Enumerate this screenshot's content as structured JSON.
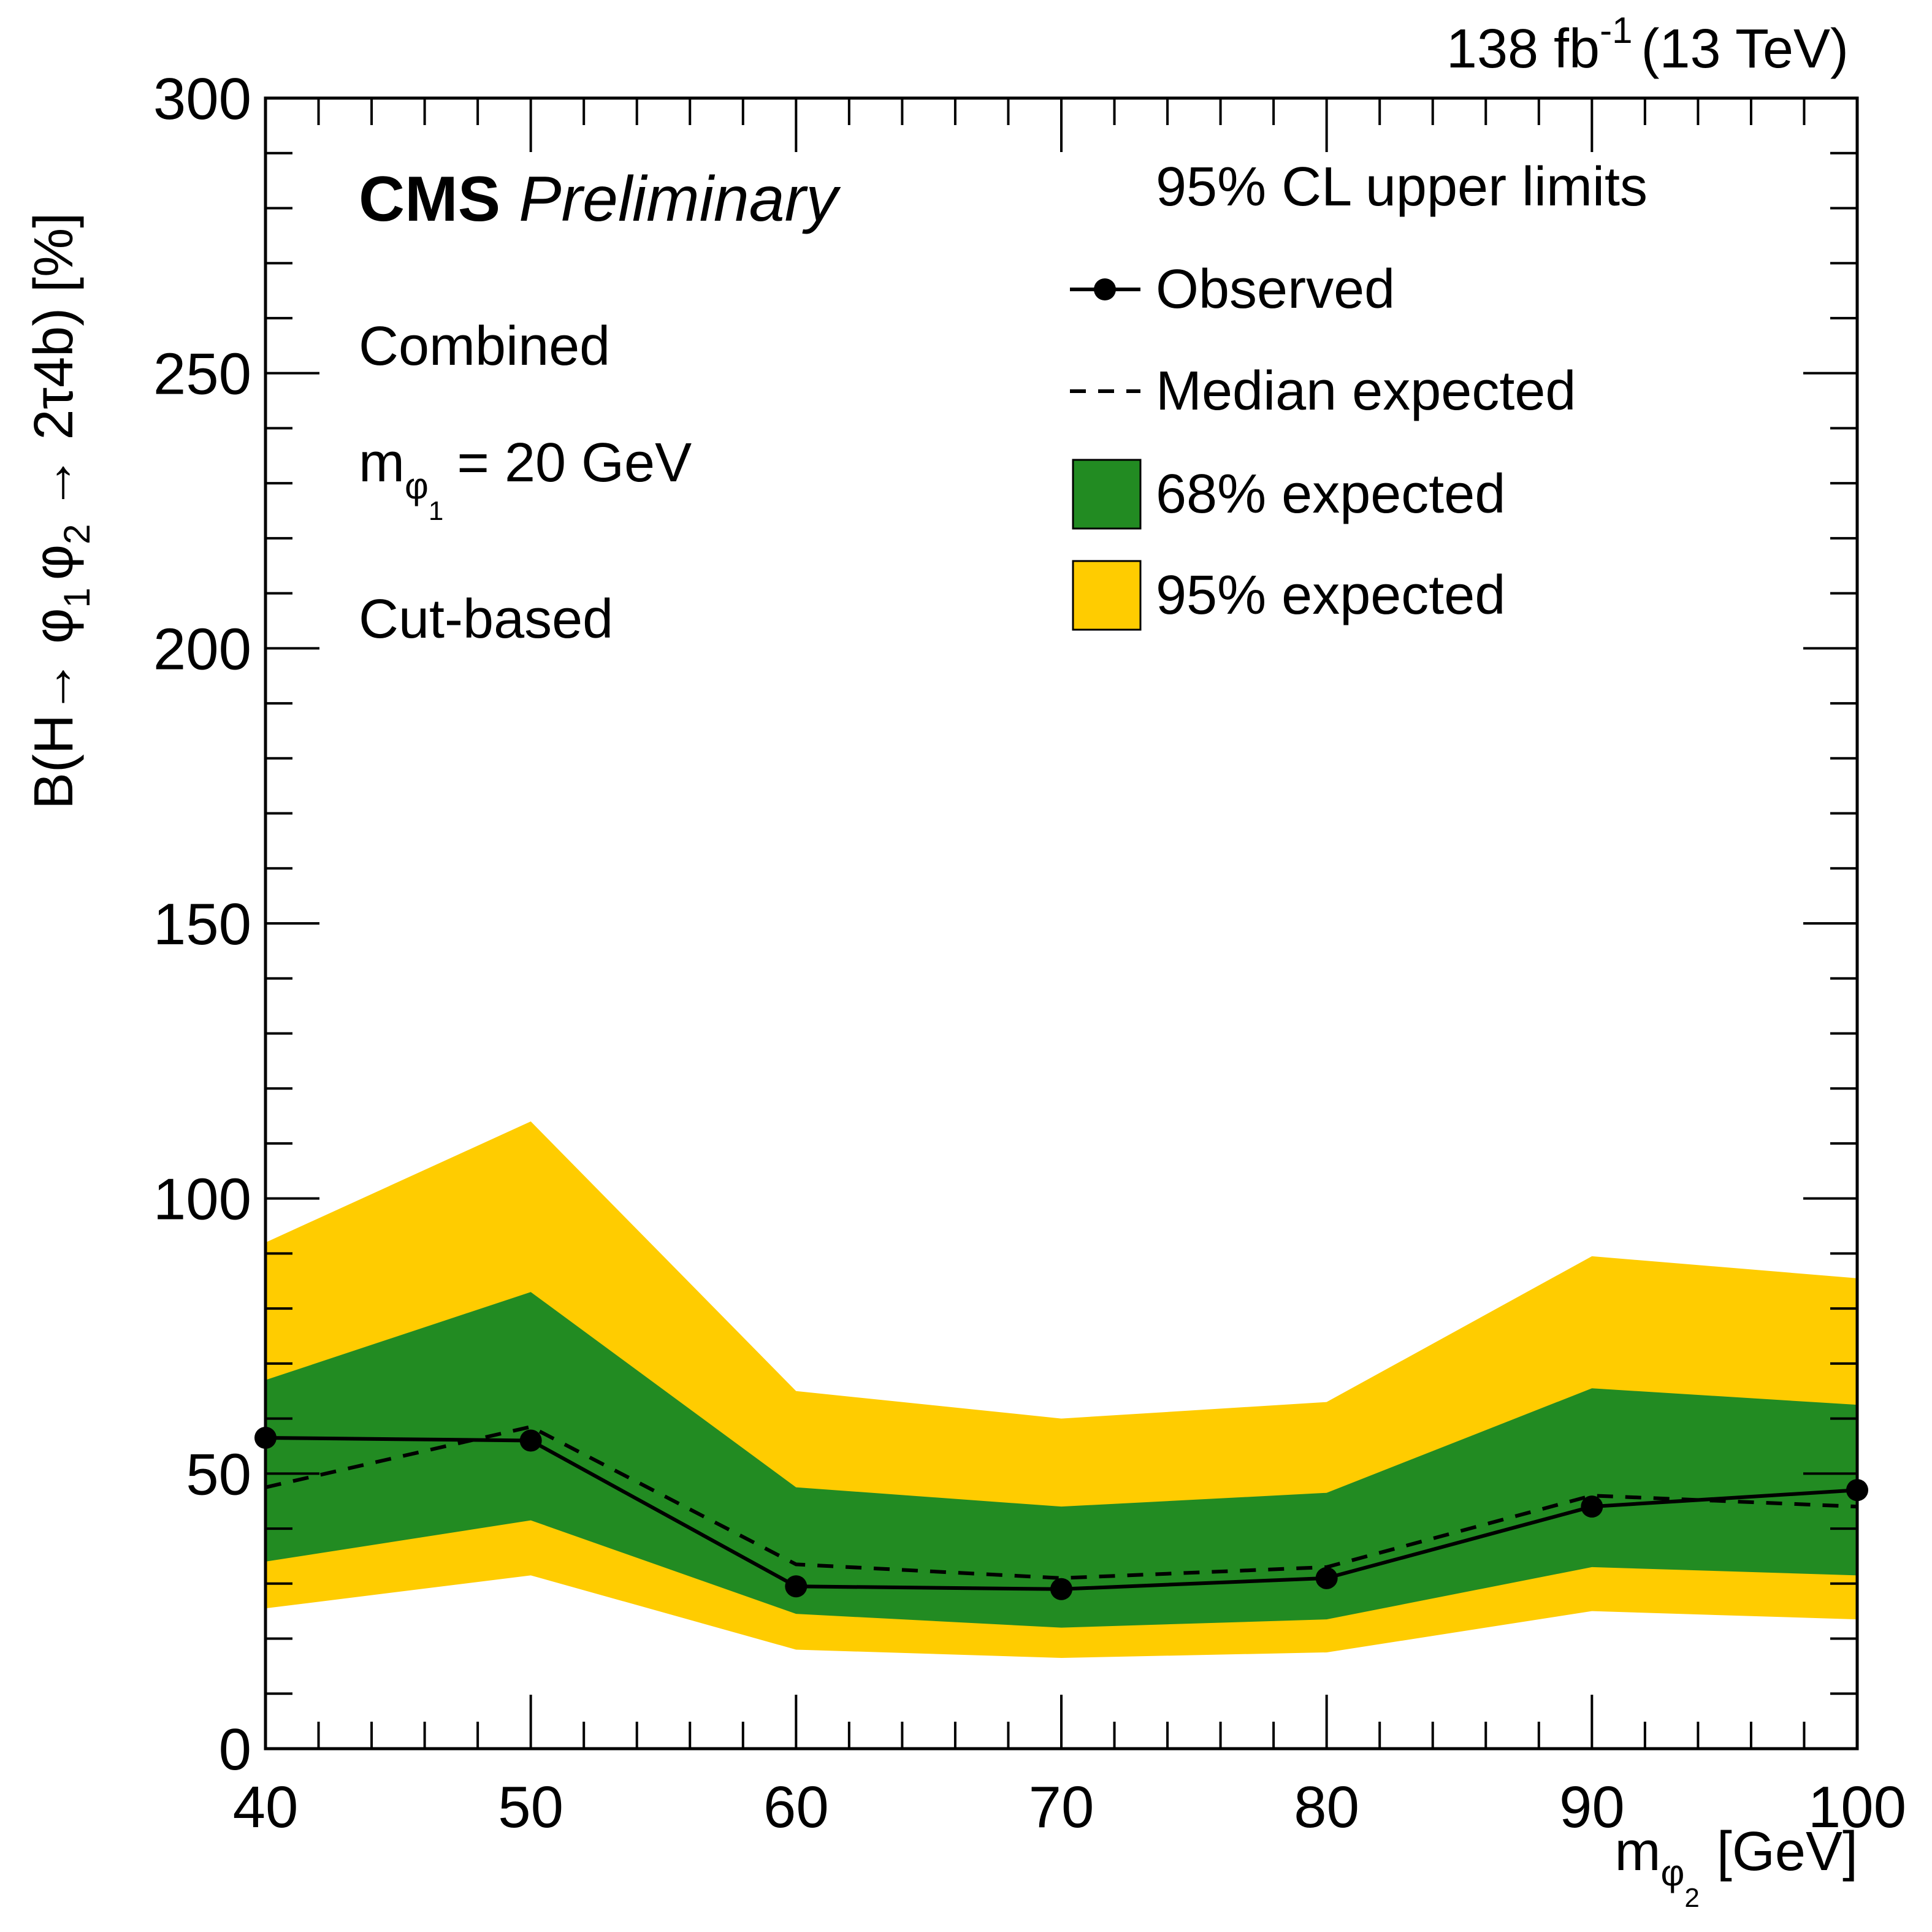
{
  "header": {
    "lumi_value": "138 fb",
    "lumi_exponent": "-1",
    "energy": "(13 TeV)"
  },
  "cms": {
    "brand": "CMS",
    "status": "Preliminary"
  },
  "info": {
    "analysis": "Combined",
    "mass_m": "m",
    "mass_phi": "φ",
    "mass_index": "1",
    "mass_value": "= 20 GeV",
    "method": "Cut-based"
  },
  "legend": {
    "header": "95% CL upper limits",
    "observed": "Observed",
    "median": "Median expected",
    "band68": "68% expected",
    "band95": "95% expected"
  },
  "axes": {
    "x_title_m": "m",
    "x_title_phi": "φ",
    "x_title_index": "2",
    "x_title_unit": "[GeV]",
    "y_title_a": "B(H→ φ",
    "y_sub1": "1",
    "y_title_b": "φ",
    "y_sub2": "2",
    "y_title_c": "→ 2τ4b) [%]"
  },
  "colors": {
    "band68": "#228b22",
    "band95": "#ffcc00",
    "observed": "#000000",
    "median": "#000000"
  },
  "chart_data": {
    "type": "line",
    "title": "",
    "xlabel": "m_phi2 [GeV]",
    "ylabel": "B(H→ φ_1 φ_2 → 2τ4b) [%]",
    "xlim": [
      40,
      100
    ],
    "ylim": [
      0,
      300
    ],
    "x_ticks": [
      40,
      50,
      60,
      70,
      80,
      90,
      100
    ],
    "y_ticks": [
      0,
      50,
      100,
      150,
      200,
      250,
      300
    ],
    "x_tick_labels": [
      "40",
      "50",
      "60",
      "70",
      "80",
      "90",
      "100"
    ],
    "y_tick_labels": [
      "0",
      "50",
      "100",
      "150",
      "200",
      "250",
      "300"
    ],
    "legend_position": "top-right",
    "grid": false,
    "x": [
      40,
      50,
      60,
      70,
      80,
      90,
      100
    ],
    "series": [
      {
        "name": "Observed",
        "style": "solid-marker",
        "values": [
          56.5,
          56,
          29.5,
          29,
          31,
          44,
          47
        ]
      },
      {
        "name": "Median expected",
        "style": "dashed",
        "values": [
          47.5,
          58.5,
          33.5,
          31,
          33,
          46,
          44
        ]
      },
      {
        "name": "68% expected",
        "style": "band",
        "lower": [
          34,
          41.5,
          24.5,
          22,
          23.5,
          33,
          31.5
        ],
        "upper": [
          67,
          83,
          47.5,
          44,
          46.5,
          65.5,
          62.5
        ]
      },
      {
        "name": "95% expected",
        "style": "band",
        "lower": [
          25.5,
          31.5,
          18,
          16.5,
          17.5,
          25,
          23.5
        ],
        "upper": [
          92,
          114,
          65,
          60,
          63,
          89.5,
          85.5
        ]
      }
    ]
  }
}
